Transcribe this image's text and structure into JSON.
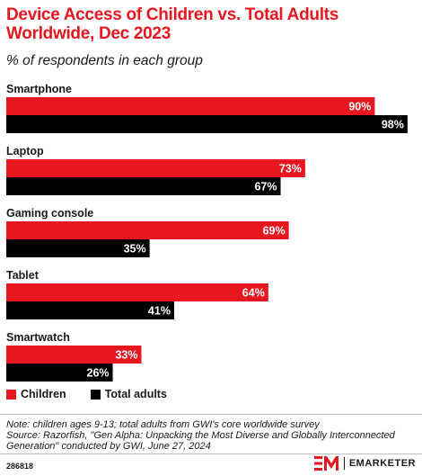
{
  "header": {
    "title": "Device Access of Children vs. Total Adults Worldwide, Dec 2023",
    "subtitle": "% of respondents in each group"
  },
  "colors": {
    "children": "#e8161f",
    "adults": "#000000"
  },
  "chart_data": {
    "type": "bar",
    "orientation": "horizontal",
    "categories": [
      "Smartphone",
      "Laptop",
      "Gaming console",
      "Tablet",
      "Smartwatch"
    ],
    "series": [
      {
        "name": "Children",
        "values": [
          90,
          73,
          69,
          64,
          33
        ]
      },
      {
        "name": "Total adults",
        "values": [
          98,
          67,
          35,
          41,
          26
        ]
      }
    ],
    "value_suffix": "%",
    "xlim": [
      0,
      100
    ],
    "grid": false,
    "legend_position": "bottom-left"
  },
  "legend": {
    "children": "Children",
    "adults": "Total adults"
  },
  "footer": {
    "note": "Note: children ages 9-13; total adults from GWI's core worldwide survey",
    "source": "Source: Razorfish, \"Gen Alpha: Unpacking the Most Diverse and Globally Interconnected Generation\" conducted by GWI, June 27, 2024",
    "chart_id": "286818",
    "brand": "EMARKETER"
  }
}
